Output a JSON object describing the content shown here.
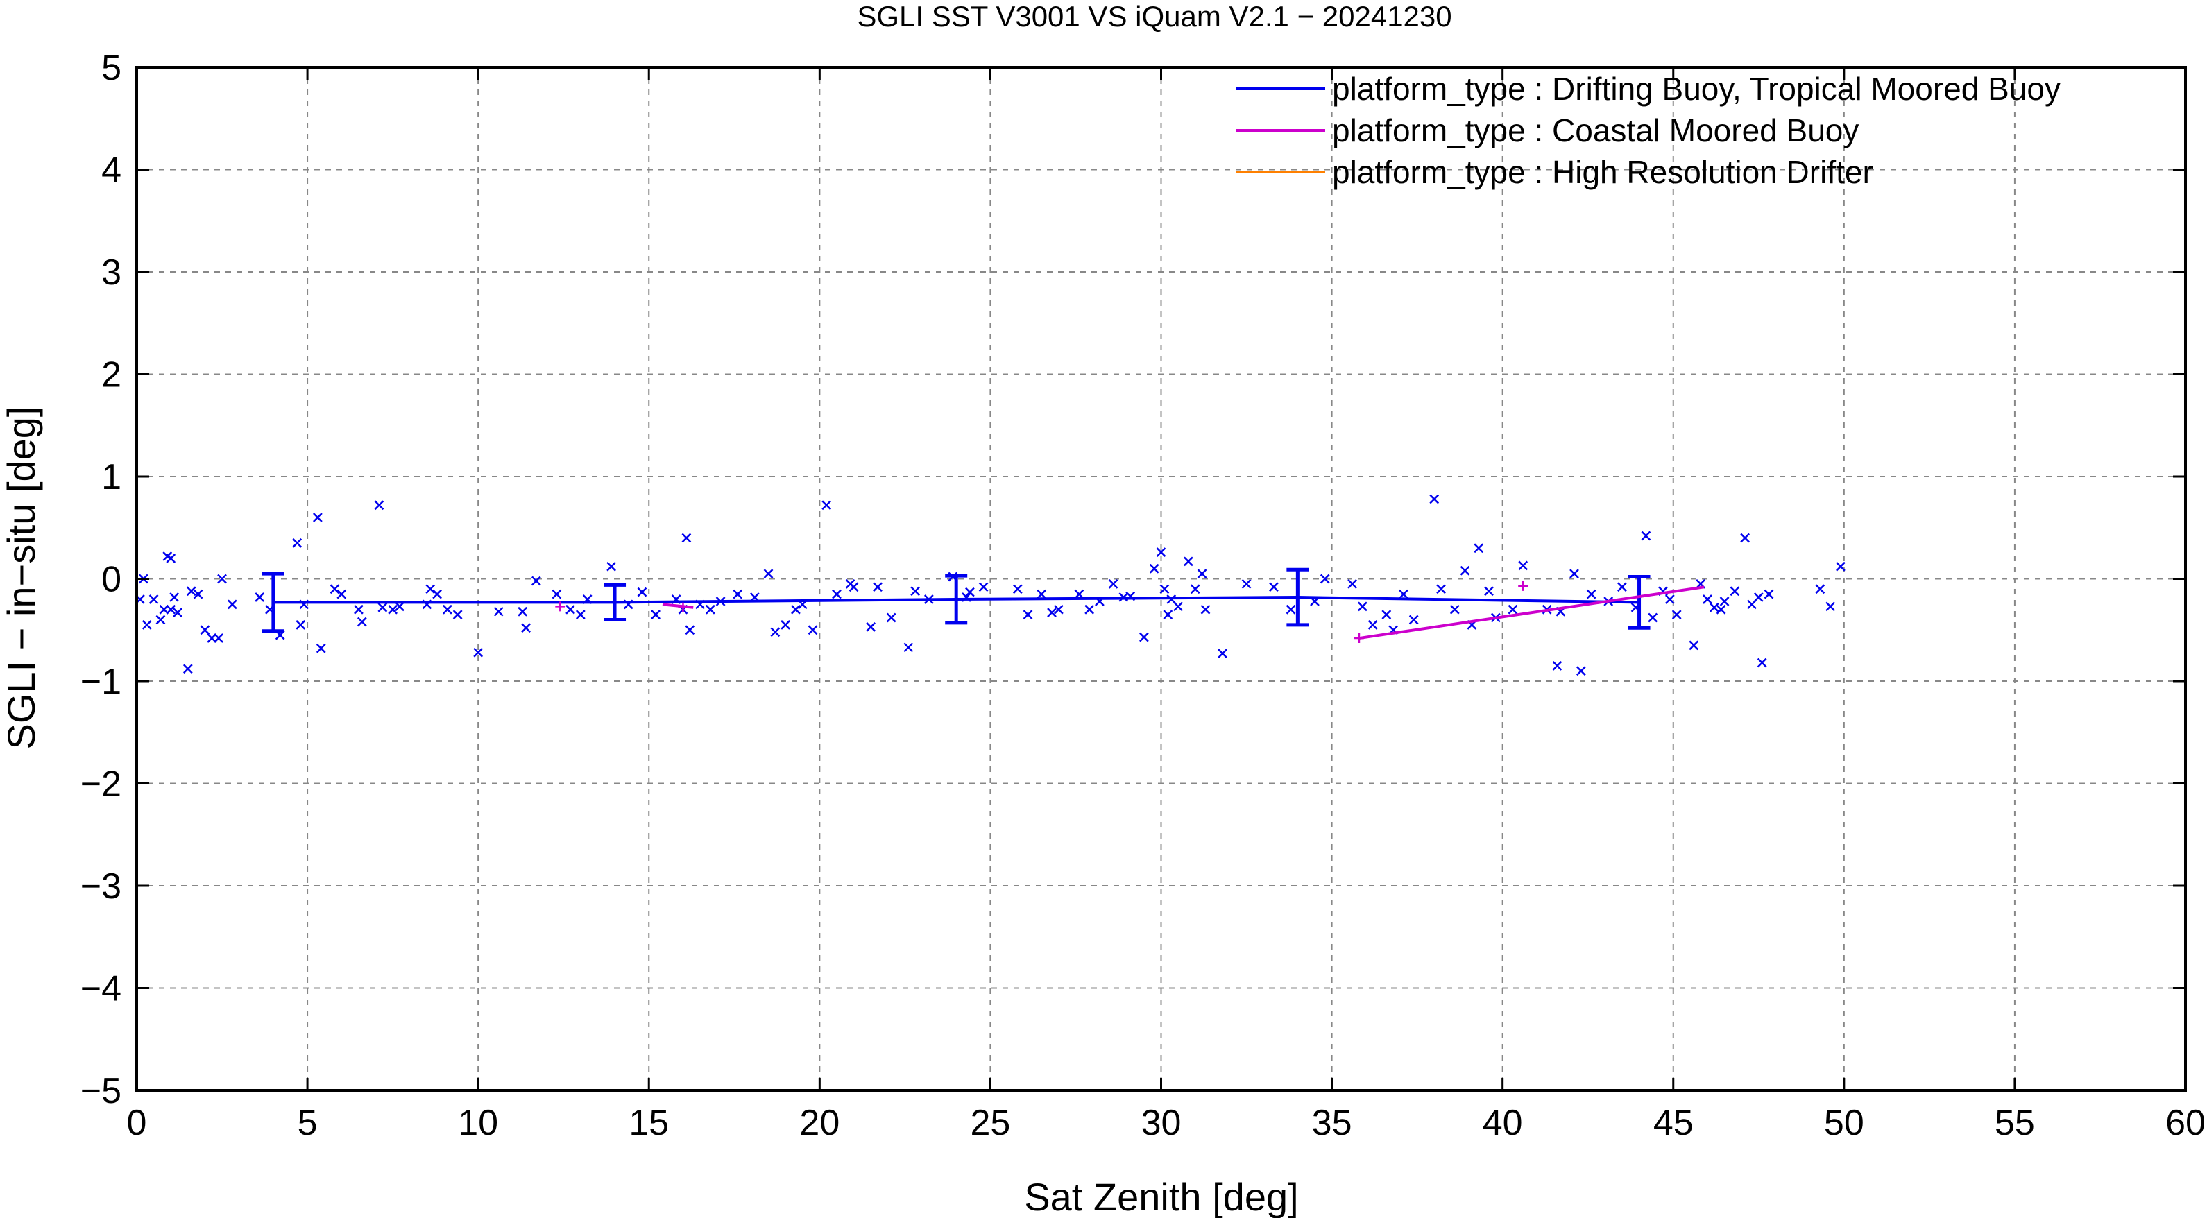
{
  "chart_data": {
    "type": "scatter",
    "title": "SGLI SST V3001 VS iQuam V2.1  − 20241230",
    "xlabel": "Sat Zenith [deg]",
    "ylabel": "SGLI − in−situ [deg]",
    "xlim": [
      0,
      60
    ],
    "ylim": [
      -5,
      5
    ],
    "x_ticks": [
      0,
      5,
      10,
      15,
      20,
      25,
      30,
      35,
      40,
      45,
      50,
      55,
      60
    ],
    "x_tick_labels": [
      "0",
      "5",
      "10",
      "15",
      "20",
      "25",
      "30",
      "35",
      "40",
      "45",
      "50",
      "55",
      "60"
    ],
    "y_ticks": [
      -5,
      -4,
      -3,
      -2,
      -1,
      0,
      1,
      2,
      3,
      4,
      5
    ],
    "y_tick_labels": [
      "−5",
      "−4",
      "−3",
      "−2",
      "−1",
      "0",
      "1",
      "2",
      "3",
      "4",
      "5"
    ],
    "grid": true,
    "legend_position": "top-right",
    "colors": {
      "drifting": "#0000ee",
      "coastal": "#cc00cc",
      "hrd": "#ff8000"
    },
    "legend": [
      {
        "label": "platform_type : Drifting Buoy, Tropical Moored Buoy",
        "color": "#0000ee"
      },
      {
        "label": "platform_type : Coastal Moored Buoy",
        "color": "#cc00cc"
      },
      {
        "label": "platform_type : High Resolution Drifter",
        "color": "#ff8000"
      }
    ],
    "series": [
      {
        "name": "platform_type : Drifting Buoy, Tropical Moored Buoy",
        "marker": "x",
        "points": [
          [
            0.1,
            -0.2
          ],
          [
            0.2,
            0.0
          ],
          [
            0.3,
            -0.45
          ],
          [
            0.5,
            -0.2
          ],
          [
            0.7,
            -0.4
          ],
          [
            0.8,
            -0.3
          ],
          [
            0.9,
            0.22
          ],
          [
            1.0,
            0.2
          ],
          [
            1.0,
            -0.3
          ],
          [
            1.1,
            -0.18
          ],
          [
            1.2,
            -0.33
          ],
          [
            1.5,
            -0.88
          ],
          [
            1.6,
            -0.12
          ],
          [
            1.8,
            -0.15
          ],
          [
            2.0,
            -0.5
          ],
          [
            2.2,
            -0.58
          ],
          [
            2.4,
            -0.58
          ],
          [
            2.5,
            0.0
          ],
          [
            2.8,
            -0.25
          ],
          [
            3.6,
            -0.18
          ],
          [
            3.9,
            -0.3
          ],
          [
            4.2,
            -0.55
          ],
          [
            4.7,
            0.35
          ],
          [
            4.8,
            -0.45
          ],
          [
            4.9,
            -0.25
          ],
          [
            5.3,
            0.6
          ],
          [
            5.4,
            -0.68
          ],
          [
            5.8,
            -0.1
          ],
          [
            6.0,
            -0.15
          ],
          [
            6.5,
            -0.3
          ],
          [
            6.6,
            -0.42
          ],
          [
            7.1,
            0.72
          ],
          [
            7.2,
            -0.28
          ],
          [
            7.5,
            -0.3
          ],
          [
            7.7,
            -0.27
          ],
          [
            8.5,
            -0.25
          ],
          [
            8.6,
            -0.1
          ],
          [
            8.8,
            -0.15
          ],
          [
            9.1,
            -0.3
          ],
          [
            9.4,
            -0.35
          ],
          [
            10.0,
            -0.72
          ],
          [
            10.6,
            -0.32
          ],
          [
            11.3,
            -0.32
          ],
          [
            11.4,
            -0.48
          ],
          [
            11.7,
            -0.02
          ],
          [
            12.3,
            -0.15
          ],
          [
            12.7,
            -0.3
          ],
          [
            13.0,
            -0.35
          ],
          [
            13.2,
            -0.2
          ],
          [
            13.9,
            0.12
          ],
          [
            14.4,
            -0.25
          ],
          [
            14.8,
            -0.13
          ],
          [
            15.2,
            -0.35
          ],
          [
            15.8,
            -0.2
          ],
          [
            16.0,
            -0.3
          ],
          [
            16.1,
            0.4
          ],
          [
            16.2,
            -0.5
          ],
          [
            16.5,
            -0.25
          ],
          [
            16.8,
            -0.3
          ],
          [
            17.1,
            -0.22
          ],
          [
            17.6,
            -0.15
          ],
          [
            18.1,
            -0.18
          ],
          [
            18.5,
            0.05
          ],
          [
            18.7,
            -0.52
          ],
          [
            19.0,
            -0.45
          ],
          [
            19.3,
            -0.3
          ],
          [
            19.5,
            -0.25
          ],
          [
            19.8,
            -0.5
          ],
          [
            20.2,
            0.72
          ],
          [
            20.5,
            -0.15
          ],
          [
            20.9,
            -0.05
          ],
          [
            21.0,
            -0.08
          ],
          [
            21.5,
            -0.47
          ],
          [
            21.7,
            -0.08
          ],
          [
            22.1,
            -0.38
          ],
          [
            22.6,
            -0.67
          ],
          [
            22.8,
            -0.12
          ],
          [
            23.2,
            -0.2
          ],
          [
            23.9,
            0.02
          ],
          [
            24.3,
            -0.18
          ],
          [
            24.4,
            -0.13
          ],
          [
            24.8,
            -0.08
          ],
          [
            25.8,
            -0.1
          ],
          [
            26.1,
            -0.35
          ],
          [
            26.5,
            -0.15
          ],
          [
            26.8,
            -0.33
          ],
          [
            27.0,
            -0.3
          ],
          [
            27.6,
            -0.15
          ],
          [
            27.9,
            -0.3
          ],
          [
            28.2,
            -0.22
          ],
          [
            28.6,
            -0.05
          ],
          [
            28.9,
            -0.18
          ],
          [
            29.1,
            -0.17
          ],
          [
            29.5,
            -0.57
          ],
          [
            29.8,
            0.1
          ],
          [
            30.0,
            0.26
          ],
          [
            30.1,
            -0.1
          ],
          [
            30.2,
            -0.35
          ],
          [
            30.3,
            -0.2
          ],
          [
            30.5,
            -0.27
          ],
          [
            30.8,
            0.17
          ],
          [
            31.0,
            -0.1
          ],
          [
            31.2,
            0.05
          ],
          [
            31.3,
            -0.3
          ],
          [
            31.8,
            -0.73
          ],
          [
            32.5,
            -0.05
          ],
          [
            33.3,
            -0.08
          ],
          [
            33.8,
            -0.3
          ],
          [
            34.5,
            -0.22
          ],
          [
            34.8,
            0.0
          ],
          [
            35.6,
            -0.05
          ],
          [
            35.9,
            -0.27
          ],
          [
            36.2,
            -0.45
          ],
          [
            36.6,
            -0.35
          ],
          [
            36.8,
            -0.5
          ],
          [
            37.1,
            -0.15
          ],
          [
            37.4,
            -0.4
          ],
          [
            38.0,
            0.78
          ],
          [
            38.2,
            -0.1
          ],
          [
            38.6,
            -0.3
          ],
          [
            38.9,
            0.08
          ],
          [
            39.1,
            -0.45
          ],
          [
            39.3,
            0.3
          ],
          [
            39.6,
            -0.12
          ],
          [
            39.8,
            -0.38
          ],
          [
            40.3,
            -0.3
          ],
          [
            40.6,
            0.13
          ],
          [
            41.3,
            -0.3
          ],
          [
            41.6,
            -0.85
          ],
          [
            41.7,
            -0.32
          ],
          [
            42.1,
            0.05
          ],
          [
            42.3,
            -0.9
          ],
          [
            42.6,
            -0.15
          ],
          [
            43.1,
            -0.22
          ],
          [
            43.5,
            -0.08
          ],
          [
            43.9,
            -0.28
          ],
          [
            44.2,
            0.42
          ],
          [
            44.4,
            -0.38
          ],
          [
            44.7,
            -0.12
          ],
          [
            44.9,
            -0.2
          ],
          [
            45.1,
            -0.35
          ],
          [
            45.6,
            -0.65
          ],
          [
            45.8,
            -0.05
          ],
          [
            46.0,
            -0.2
          ],
          [
            46.2,
            -0.28
          ],
          [
            46.4,
            -0.3
          ],
          [
            46.5,
            -0.22
          ],
          [
            46.8,
            -0.12
          ],
          [
            47.1,
            0.4
          ],
          [
            47.3,
            -0.25
          ],
          [
            47.5,
            -0.18
          ],
          [
            47.6,
            -0.82
          ],
          [
            47.8,
            -0.15
          ],
          [
            49.3,
            -0.1
          ],
          [
            49.6,
            -0.27
          ],
          [
            49.9,
            0.12
          ]
        ],
        "binned": {
          "x": [
            4,
            14,
            24,
            34,
            44
          ],
          "y": [
            -0.23,
            -0.23,
            -0.2,
            -0.18,
            -0.23
          ],
          "err": [
            0.28,
            0.17,
            0.23,
            0.27,
            0.25
          ]
        }
      },
      {
        "name": "platform_type : Coastal Moored Buoy",
        "marker": "+",
        "points": [
          [
            12.4,
            -0.27
          ],
          [
            16.0,
            -0.28
          ],
          [
            35.8,
            -0.58
          ],
          [
            40.6,
            -0.07
          ]
        ],
        "line": [
          [
            35.8,
            -0.58
          ],
          [
            45.9,
            -0.08
          ]
        ],
        "segment": [
          [
            15.4,
            -0.25
          ],
          [
            16.3,
            -0.28
          ]
        ]
      },
      {
        "name": "platform_type : High Resolution Drifter",
        "points": []
      }
    ]
  }
}
